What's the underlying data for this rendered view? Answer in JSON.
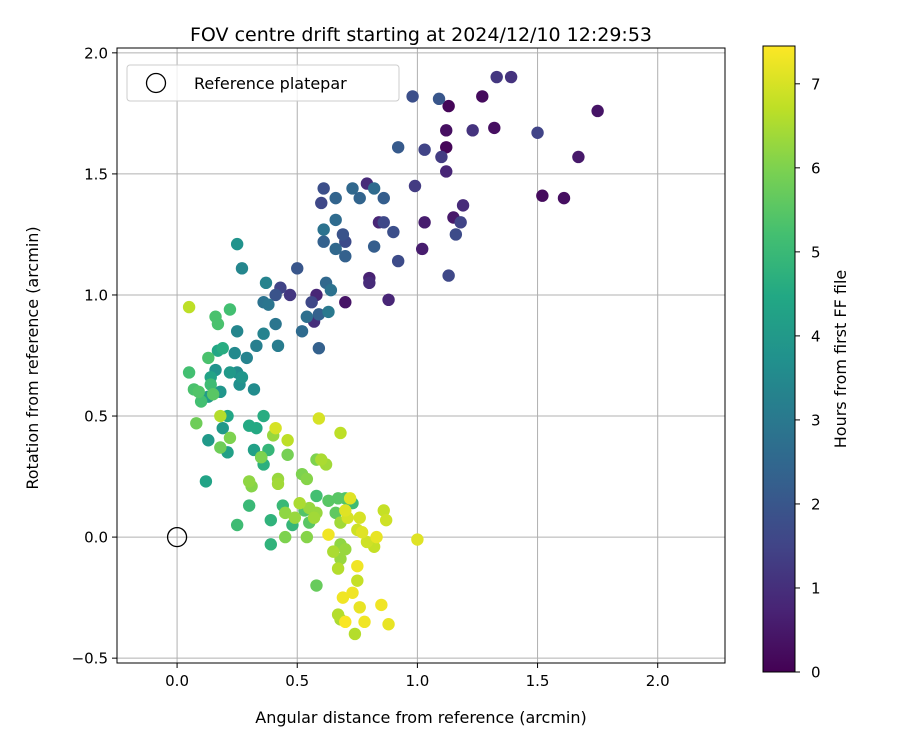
{
  "chart_data": {
    "type": "scatter",
    "title": "FOV centre drift starting at 2024/12/10 12:29:53",
    "xlabel": "Angular distance from reference (arcmin)",
    "ylabel": "Rotation from reference (arcmin)",
    "xlim": [
      -0.25,
      2.28
    ],
    "ylim": [
      -0.52,
      2.02
    ],
    "xticks": [
      0.0,
      0.5,
      1.0,
      1.5,
      2.0
    ],
    "xtick_labels": [
      "0.0",
      "0.5",
      "1.0",
      "1.5",
      "2.0"
    ],
    "yticks": [
      -0.5,
      0.0,
      0.5,
      1.0,
      1.5,
      2.0
    ],
    "ytick_labels": [
      "−0.5",
      "0.0",
      "0.5",
      "1.0",
      "1.5",
      "2.0"
    ],
    "grid": true,
    "legend": {
      "placement": "top-left",
      "entries": [
        "Reference platepar"
      ]
    },
    "reference_point": {
      "x": 0.0,
      "y": 0.0
    },
    "colorbar": {
      "label": "Hours from first FF file",
      "colormap": "viridis",
      "range": [
        0,
        7.45
      ],
      "ticks": [
        0,
        1,
        2,
        3,
        4,
        5,
        6,
        7
      ],
      "tick_labels": [
        "0",
        "1",
        "2",
        "3",
        "4",
        "5",
        "6",
        "7"
      ]
    },
    "points": [
      {
        "x": 1.13,
        "y": 1.78,
        "t": 0.1
      },
      {
        "x": 1.27,
        "y": 1.82,
        "t": 0.2
      },
      {
        "x": 1.12,
        "y": 1.68,
        "t": 0.3
      },
      {
        "x": 1.32,
        "y": 1.69,
        "t": 0.3
      },
      {
        "x": 1.12,
        "y": 1.61,
        "t": 0.1
      },
      {
        "x": 1.75,
        "y": 1.76,
        "t": 0.4
      },
      {
        "x": 1.67,
        "y": 1.57,
        "t": 0.5
      },
      {
        "x": 1.52,
        "y": 1.41,
        "t": 0.2
      },
      {
        "x": 1.61,
        "y": 1.4,
        "t": 0.3
      },
      {
        "x": 1.12,
        "y": 1.51,
        "t": 0.8
      },
      {
        "x": 1.15,
        "y": 1.32,
        "t": 0.5
      },
      {
        "x": 1.19,
        "y": 1.37,
        "t": 0.9
      },
      {
        "x": 1.02,
        "y": 1.19,
        "t": 0.6
      },
      {
        "x": 1.03,
        "y": 1.3,
        "t": 0.6
      },
      {
        "x": 0.79,
        "y": 1.46,
        "t": 0.9
      },
      {
        "x": 0.84,
        "y": 1.3,
        "t": 0.8
      },
      {
        "x": 0.8,
        "y": 1.07,
        "t": 0.7
      },
      {
        "x": 0.8,
        "y": 1.05,
        "t": 0.9
      },
      {
        "x": 0.88,
        "y": 0.98,
        "t": 0.8
      },
      {
        "x": 0.7,
        "y": 0.97,
        "t": 0.4
      },
      {
        "x": 0.58,
        "y": 1.0,
        "t": 0.8
      },
      {
        "x": 0.57,
        "y": 0.89,
        "t": 1.0
      },
      {
        "x": 1.33,
        "y": 1.9,
        "t": 1.2
      },
      {
        "x": 1.39,
        "y": 1.9,
        "t": 1.1
      },
      {
        "x": 1.23,
        "y": 1.68,
        "t": 1.1
      },
      {
        "x": 1.1,
        "y": 1.57,
        "t": 1.3
      },
      {
        "x": 1.03,
        "y": 1.6,
        "t": 1.5
      },
      {
        "x": 0.99,
        "y": 1.45,
        "t": 1.3
      },
      {
        "x": 1.5,
        "y": 1.67,
        "t": 1.5
      },
      {
        "x": 1.13,
        "y": 1.08,
        "t": 1.6
      },
      {
        "x": 1.16,
        "y": 1.25,
        "t": 1.7
      },
      {
        "x": 1.18,
        "y": 1.3,
        "t": 1.5
      },
      {
        "x": 0.92,
        "y": 1.14,
        "t": 1.7
      },
      {
        "x": 0.9,
        "y": 1.26,
        "t": 1.8
      },
      {
        "x": 0.86,
        "y": 1.3,
        "t": 1.6
      },
      {
        "x": 0.69,
        "y": 1.25,
        "t": 1.9
      },
      {
        "x": 0.7,
        "y": 1.22,
        "t": 1.7
      },
      {
        "x": 0.6,
        "y": 1.38,
        "t": 1.6
      },
      {
        "x": 0.61,
        "y": 1.44,
        "t": 1.8
      },
      {
        "x": 0.47,
        "y": 1.0,
        "t": 1.2
      },
      {
        "x": 0.41,
        "y": 1.0,
        "t": 1.9
      },
      {
        "x": 0.43,
        "y": 1.03,
        "t": 1.5
      },
      {
        "x": 0.5,
        "y": 1.11,
        "t": 2.0
      },
      {
        "x": 0.56,
        "y": 0.97,
        "t": 1.6
      },
      {
        "x": 0.98,
        "y": 1.82,
        "t": 1.8
      },
      {
        "x": 1.09,
        "y": 1.81,
        "t": 2.0
      },
      {
        "x": 0.92,
        "y": 1.61,
        "t": 2.1
      },
      {
        "x": 0.86,
        "y": 1.4,
        "t": 2.2
      },
      {
        "x": 0.73,
        "y": 1.44,
        "t": 2.5
      },
      {
        "x": 0.76,
        "y": 1.4,
        "t": 2.4
      },
      {
        "x": 0.82,
        "y": 1.44,
        "t": 2.6
      },
      {
        "x": 0.66,
        "y": 1.31,
        "t": 2.6
      },
      {
        "x": 0.66,
        "y": 1.4,
        "t": 2.4
      },
      {
        "x": 0.61,
        "y": 1.27,
        "t": 2.8
      },
      {
        "x": 0.61,
        "y": 1.22,
        "t": 2.3
      },
      {
        "x": 0.66,
        "y": 1.19,
        "t": 2.5
      },
      {
        "x": 0.7,
        "y": 1.16,
        "t": 2.3
      },
      {
        "x": 0.82,
        "y": 1.2,
        "t": 2.2
      },
      {
        "x": 0.59,
        "y": 0.78,
        "t": 2.3
      },
      {
        "x": 0.52,
        "y": 0.85,
        "t": 2.6
      },
      {
        "x": 0.54,
        "y": 0.91,
        "t": 2.7
      },
      {
        "x": 0.59,
        "y": 0.92,
        "t": 2.3
      },
      {
        "x": 0.62,
        "y": 1.05,
        "t": 2.5
      },
      {
        "x": 0.64,
        "y": 1.02,
        "t": 2.8
      },
      {
        "x": 0.63,
        "y": 0.93,
        "t": 3.0
      },
      {
        "x": 0.36,
        "y": 0.97,
        "t": 2.8
      },
      {
        "x": 0.38,
        "y": 0.96,
        "t": 2.9
      },
      {
        "x": 0.41,
        "y": 0.88,
        "t": 2.9
      },
      {
        "x": 0.42,
        "y": 0.79,
        "t": 3.1
      },
      {
        "x": 0.33,
        "y": 0.79,
        "t": 3.2
      },
      {
        "x": 0.36,
        "y": 0.84,
        "t": 3.3
      },
      {
        "x": 0.27,
        "y": 1.11,
        "t": 3.4
      },
      {
        "x": 0.37,
        "y": 1.05,
        "t": 3.3
      },
      {
        "x": 0.25,
        "y": 0.85,
        "t": 3.4
      },
      {
        "x": 0.24,
        "y": 0.76,
        "t": 3.5
      },
      {
        "x": 0.29,
        "y": 0.74,
        "t": 3.3
      },
      {
        "x": 0.25,
        "y": 0.68,
        "t": 3.6
      },
      {
        "x": 0.26,
        "y": 0.63,
        "t": 3.7
      },
      {
        "x": 0.32,
        "y": 0.61,
        "t": 3.6
      },
      {
        "x": 0.25,
        "y": 1.21,
        "t": 3.8
      },
      {
        "x": 0.16,
        "y": 0.69,
        "t": 3.8
      },
      {
        "x": 0.22,
        "y": 0.68,
        "t": 4.0
      },
      {
        "x": 0.27,
        "y": 0.66,
        "t": 3.9
      },
      {
        "x": 0.18,
        "y": 0.6,
        "t": 3.9
      },
      {
        "x": 0.13,
        "y": 0.58,
        "t": 4.1
      },
      {
        "x": 0.19,
        "y": 0.45,
        "t": 4.0
      },
      {
        "x": 0.21,
        "y": 0.35,
        "t": 4.2
      },
      {
        "x": 0.13,
        "y": 0.4,
        "t": 4.0
      },
      {
        "x": 0.12,
        "y": 0.23,
        "t": 4.3
      },
      {
        "x": 0.14,
        "y": 0.66,
        "t": 4.3
      },
      {
        "x": 0.17,
        "y": 0.77,
        "t": 4.4
      },
      {
        "x": 0.19,
        "y": 0.78,
        "t": 4.6
      },
      {
        "x": 0.21,
        "y": 0.5,
        "t": 4.4
      },
      {
        "x": 0.3,
        "y": 0.46,
        "t": 4.5
      },
      {
        "x": 0.33,
        "y": 0.45,
        "t": 4.5
      },
      {
        "x": 0.36,
        "y": 0.5,
        "t": 4.6
      },
      {
        "x": 0.32,
        "y": 0.36,
        "t": 4.2
      },
      {
        "x": 0.35,
        "y": 0.33,
        "t": 4.4
      },
      {
        "x": 0.36,
        "y": 0.3,
        "t": 4.7
      },
      {
        "x": 0.38,
        "y": 0.36,
        "t": 4.9
      },
      {
        "x": 0.39,
        "y": 0.07,
        "t": 4.8
      },
      {
        "x": 0.39,
        "y": -0.03,
        "t": 4.8
      },
      {
        "x": 0.44,
        "y": 0.13,
        "t": 5.0
      },
      {
        "x": 0.48,
        "y": 0.05,
        "t": 4.9
      },
      {
        "x": 0.3,
        "y": 0.13,
        "t": 5.0
      },
      {
        "x": 0.25,
        "y": 0.05,
        "t": 5.1
      },
      {
        "x": 0.14,
        "y": 0.63,
        "t": 5.1
      },
      {
        "x": 0.13,
        "y": 0.74,
        "t": 5.3
      },
      {
        "x": 0.05,
        "y": 0.68,
        "t": 5.2
      },
      {
        "x": 0.07,
        "y": 0.61,
        "t": 5.3
      },
      {
        "x": 0.1,
        "y": 0.56,
        "t": 5.2
      },
      {
        "x": 0.09,
        "y": 0.6,
        "t": 5.4
      },
      {
        "x": 0.15,
        "y": 0.59,
        "t": 5.5
      },
      {
        "x": 0.16,
        "y": 0.91,
        "t": 5.3
      },
      {
        "x": 0.22,
        "y": 0.94,
        "t": 5.2
      },
      {
        "x": 0.17,
        "y": 0.88,
        "t": 5.3
      },
      {
        "x": 0.53,
        "y": 0.11,
        "t": 5.4
      },
      {
        "x": 0.55,
        "y": 0.06,
        "t": 5.5
      },
      {
        "x": 0.58,
        "y": 0.17,
        "t": 5.2
      },
      {
        "x": 0.63,
        "y": 0.15,
        "t": 5.5
      },
      {
        "x": 0.67,
        "y": 0.16,
        "t": 5.5
      },
      {
        "x": 0.7,
        "y": 0.16,
        "t": 5.4
      },
      {
        "x": 0.73,
        "y": 0.14,
        "t": 5.1
      },
      {
        "x": 0.66,
        "y": 0.1,
        "t": 5.6
      },
      {
        "x": 0.58,
        "y": -0.2,
        "t": 5.7
      },
      {
        "x": 0.08,
        "y": 0.47,
        "t": 5.8
      },
      {
        "x": 0.18,
        "y": 0.37,
        "t": 5.8
      },
      {
        "x": 0.22,
        "y": 0.41,
        "t": 6.0
      },
      {
        "x": 0.35,
        "y": 0.33,
        "t": 6.0
      },
      {
        "x": 0.4,
        "y": 0.42,
        "t": 6.3
      },
      {
        "x": 0.46,
        "y": 0.34,
        "t": 5.9
      },
      {
        "x": 0.52,
        "y": 0.26,
        "t": 6.0
      },
      {
        "x": 0.54,
        "y": 0.24,
        "t": 6.1
      },
      {
        "x": 0.58,
        "y": 0.32,
        "t": 6.0
      },
      {
        "x": 0.3,
        "y": 0.23,
        "t": 6.2
      },
      {
        "x": 0.31,
        "y": 0.21,
        "t": 6.1
      },
      {
        "x": 0.42,
        "y": 0.22,
        "t": 6.4
      },
      {
        "x": 0.42,
        "y": 0.24,
        "t": 6.3
      },
      {
        "x": 0.45,
        "y": 0.1,
        "t": 6.2
      },
      {
        "x": 0.49,
        "y": 0.08,
        "t": 6.3
      },
      {
        "x": 0.51,
        "y": 0.14,
        "t": 6.5
      },
      {
        "x": 0.55,
        "y": 0.12,
        "t": 6.3
      },
      {
        "x": 0.57,
        "y": 0.08,
        "t": 6.4
      },
      {
        "x": 0.45,
        "y": 0.0,
        "t": 6.0
      },
      {
        "x": 0.54,
        "y": 0.0,
        "t": 6.1
      },
      {
        "x": 0.58,
        "y": 0.1,
        "t": 6.3
      },
      {
        "x": 0.6,
        "y": 0.32,
        "t": 6.5
      },
      {
        "x": 0.62,
        "y": 0.3,
        "t": 6.4
      },
      {
        "x": 0.68,
        "y": 0.06,
        "t": 6.4
      },
      {
        "x": 0.68,
        "y": -0.03,
        "t": 6.2
      },
      {
        "x": 0.68,
        "y": -0.09,
        "t": 6.3
      },
      {
        "x": 0.7,
        "y": -0.05,
        "t": 6.3
      },
      {
        "x": 0.65,
        "y": -0.06,
        "t": 6.5
      },
      {
        "x": 0.67,
        "y": -0.13,
        "t": 6.6
      },
      {
        "x": 0.67,
        "y": -0.32,
        "t": 6.6
      },
      {
        "x": 0.68,
        "y": -0.34,
        "t": 6.5
      },
      {
        "x": 0.74,
        "y": -0.4,
        "t": 6.6
      },
      {
        "x": 0.75,
        "y": -0.18,
        "t": 6.8
      },
      {
        "x": 0.68,
        "y": 0.43,
        "t": 6.7
      },
      {
        "x": 0.05,
        "y": 0.95,
        "t": 6.7
      },
      {
        "x": 0.18,
        "y": 0.5,
        "t": 6.6
      },
      {
        "x": 0.46,
        "y": 0.4,
        "t": 6.7
      },
      {
        "x": 0.41,
        "y": 0.45,
        "t": 7.0
      },
      {
        "x": 0.59,
        "y": 0.49,
        "t": 7.0
      },
      {
        "x": 0.7,
        "y": 0.11,
        "t": 7.1
      },
      {
        "x": 0.71,
        "y": 0.08,
        "t": 7.0
      },
      {
        "x": 0.72,
        "y": 0.16,
        "t": 7.1
      },
      {
        "x": 0.76,
        "y": 0.08,
        "t": 7.0
      },
      {
        "x": 0.75,
        "y": 0.03,
        "t": 6.9
      },
      {
        "x": 0.77,
        "y": 0.02,
        "t": 7.1
      },
      {
        "x": 0.79,
        "y": -0.02,
        "t": 6.9
      },
      {
        "x": 0.82,
        "y": -0.04,
        "t": 6.8
      },
      {
        "x": 0.83,
        "y": 0.0,
        "t": 7.2
      },
      {
        "x": 0.86,
        "y": 0.11,
        "t": 6.8
      },
      {
        "x": 0.87,
        "y": 0.07,
        "t": 6.9
      },
      {
        "x": 1.0,
        "y": -0.01,
        "t": 7.1
      },
      {
        "x": 0.63,
        "y": 0.01,
        "t": 7.3
      },
      {
        "x": 0.69,
        "y": -0.25,
        "t": 7.3
      },
      {
        "x": 0.73,
        "y": -0.23,
        "t": 7.3
      },
      {
        "x": 0.75,
        "y": -0.12,
        "t": 7.3
      },
      {
        "x": 0.76,
        "y": -0.29,
        "t": 7.2
      },
      {
        "x": 0.7,
        "y": -0.35,
        "t": 7.4
      },
      {
        "x": 0.78,
        "y": -0.35,
        "t": 7.3
      },
      {
        "x": 0.85,
        "y": -0.28,
        "t": 7.3
      },
      {
        "x": 0.88,
        "y": -0.36,
        "t": 7.2
      }
    ]
  }
}
